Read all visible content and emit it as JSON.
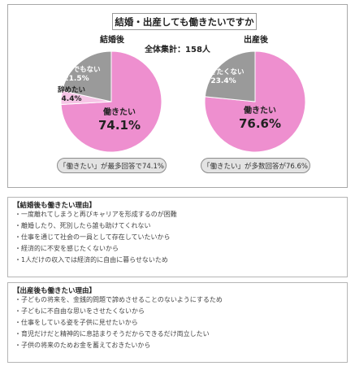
{
  "title": "結婚・出産しても働きたいですか",
  "total_label": "全体集計：158人",
  "colors": {
    "pink": "#ee8fcf",
    "light_pink": "#f6c5e6",
    "gray": "#9a9a9a"
  },
  "chart_data": [
    {
      "type": "pie",
      "title": "結婚後",
      "slices": [
        {
          "label": "働きたい",
          "value": 74.1,
          "value_text": "74.1%",
          "color": "#ee8fcf"
        },
        {
          "label": "辞めたい",
          "value": 4.4,
          "value_text": "4.4%",
          "color": "#f6c5e6"
        },
        {
          "label": "どちらでもない",
          "value": 21.5,
          "value_text": "21.5%",
          "color": "#9a9a9a"
        }
      ],
      "summary": "「働きたい」が最多回答で74.1%"
    },
    {
      "type": "pie",
      "title": "出産後",
      "slices": [
        {
          "label": "働きたい",
          "value": 76.6,
          "value_text": "76.6%",
          "color": "#ee8fcf"
        },
        {
          "label": "働きたくない",
          "value": 23.4,
          "value_text": "23.4%",
          "color": "#9a9a9a"
        }
      ],
      "summary": "「働きたい」が多数回答が76.6%"
    }
  ],
  "reasons_marriage": {
    "header": "【結婚後も働きたい理由】",
    "items": [
      "・一度離れてしまうと再びキャリアを形成するのが困難",
      "・離婚したり、死別したら誰も助けてくれない",
      "・仕事を通じて社会の一員として存在していたいから",
      "・経済的に不安を感じたくないから",
      "・1人だけの収入では経済的に自由に暮らせないため"
    ]
  },
  "reasons_birth": {
    "header": "【出産後も働きたい理由】",
    "items": [
      "・子どもの将来を、金銭的問題で諦めさせることのないようにするため",
      "・子どもに不自由な思いをさせたくないから",
      "・仕事をしている姿を子供に見せたいから",
      "・育児だけだと精神的に息詰まりそうだからできるだけ両立したい",
      "・子供の将来のためお金を蓄えておきたいから"
    ]
  }
}
